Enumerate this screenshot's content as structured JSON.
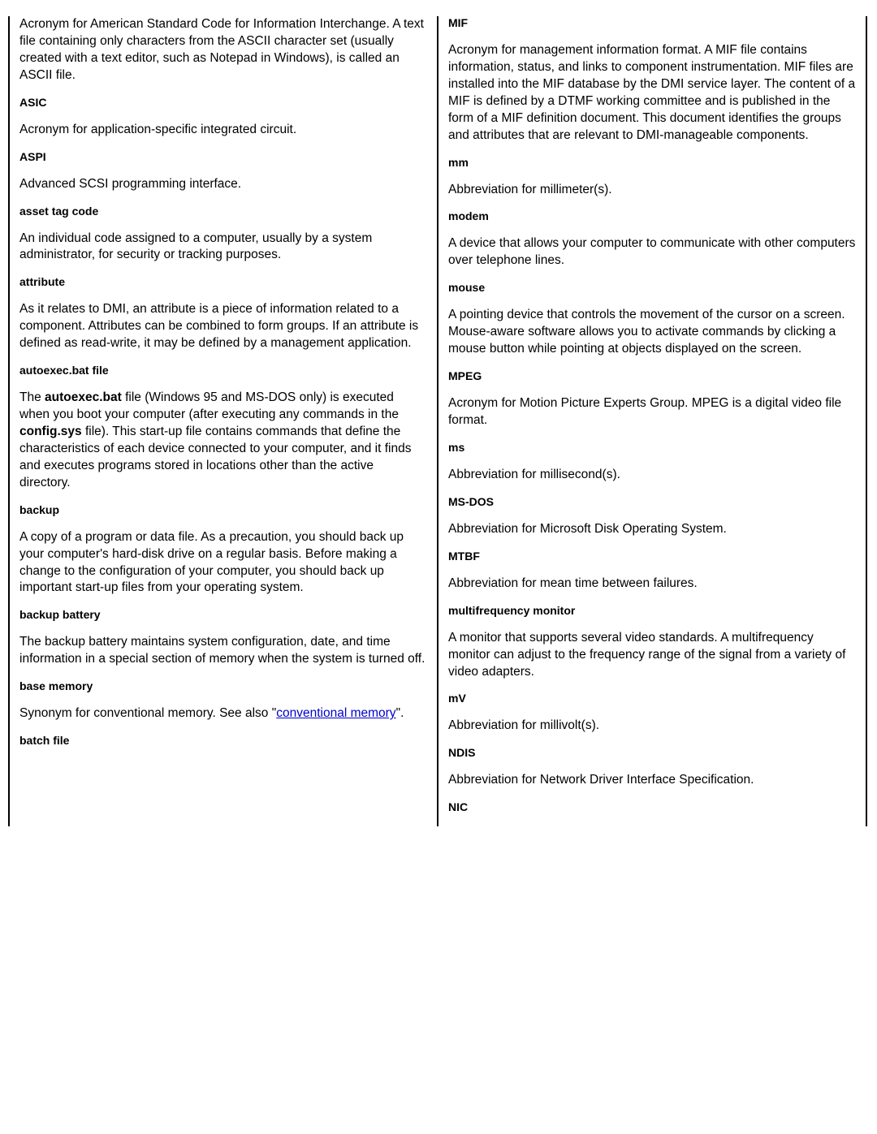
{
  "left": {
    "ascii_def": "Acronym for American Standard Code for Information Interchange. A text file containing only characters from the ASCII character set (usually created with a text editor, such as Notepad in Windows), is called an ASCII file.",
    "asic_term": "ASIC",
    "asic_def": "Acronym for application-specific integrated circuit.",
    "aspi_term": "ASPI",
    "aspi_def": "Advanced SCSI programming interface.",
    "asset_term": "asset tag code",
    "asset_def": "An individual code assigned to a computer, usually by a system administrator, for security or tracking purposes.",
    "attribute_term": "attribute",
    "attribute_def": "As it relates to DMI, an attribute is a piece of information related to a component. Attributes can be combined to form groups. If an attribute is defined as read-write, it may be defined by a management application.",
    "autoexec_term": "autoexec.bat file",
    "autoexec_p1": "The ",
    "autoexec_b1": "autoexec.bat",
    "autoexec_p2": " file (Windows 95 and MS-DOS only) is executed when you boot your computer (after executing any commands in the ",
    "autoexec_b2": "config.sys",
    "autoexec_p3": " file). This start-up file contains commands that define the characteristics of each device connected to your computer, and it finds and executes programs stored in locations other than the active directory.",
    "backup_term": "backup",
    "backup_def": "A copy of a program or data file. As a precaution, you should back up your computer's hard-disk drive on a regular basis. Before making a change to the configuration of your computer, you should back up important start-up files from your operating system.",
    "bbattery_term": "backup battery",
    "bbattery_def": "The backup battery maintains system configuration, date, and time information in a special section of memory when the system is turned off.",
    "basemem_term": "base memory",
    "basemem_p1": "Synonym for conventional memory. See also \"",
    "basemem_link": "conventional memory",
    "basemem_p2": "\".",
    "batch_term": "batch file"
  },
  "right": {
    "mif_term": "MIF",
    "mif_def": "Acronym for management information format. A MIF file contains information, status, and links to component instrumentation. MIF files are installed into the MIF database by the DMI service layer. The content of a MIF is defined by a DTMF working committee and is published in the form of a MIF definition document. This document identifies the groups and attributes that are relevant to DMI-manageable components.",
    "mm_term": "mm",
    "mm_def": "Abbreviation for millimeter(s).",
    "modem_term": "modem",
    "modem_def": "A device that allows your computer to communicate with other computers over telephone lines.",
    "mouse_term": "mouse",
    "mouse_def": "A pointing device that controls the movement of the cursor on a screen. Mouse-aware software allows you to activate commands by clicking a mouse button while pointing at objects displayed on the screen.",
    "mpeg_term": "MPEG",
    "mpeg_def": "Acronym for Motion Picture Experts Group. MPEG is a digital video file format.",
    "ms_term": "ms",
    "ms_def": "Abbreviation for millisecond(s).",
    "msdos_term": "MS-DOS",
    "msdos_def": "Abbreviation for Microsoft Disk Operating System.",
    "mtbf_term": "MTBF",
    "mtbf_def": "Abbreviation for mean time between failures.",
    "multi_term": "multifrequency monitor",
    "multi_def": "A monitor that supports several video standards. A multifrequency monitor can adjust to the frequency range of the signal from a variety of video adapters.",
    "mv_term": "mV",
    "mv_def": "Abbreviation for millivolt(s).",
    "ndis_term": "NDIS",
    "ndis_def": "Abbreviation for Network Driver Interface Specification.",
    "nic_term": "NIC"
  }
}
